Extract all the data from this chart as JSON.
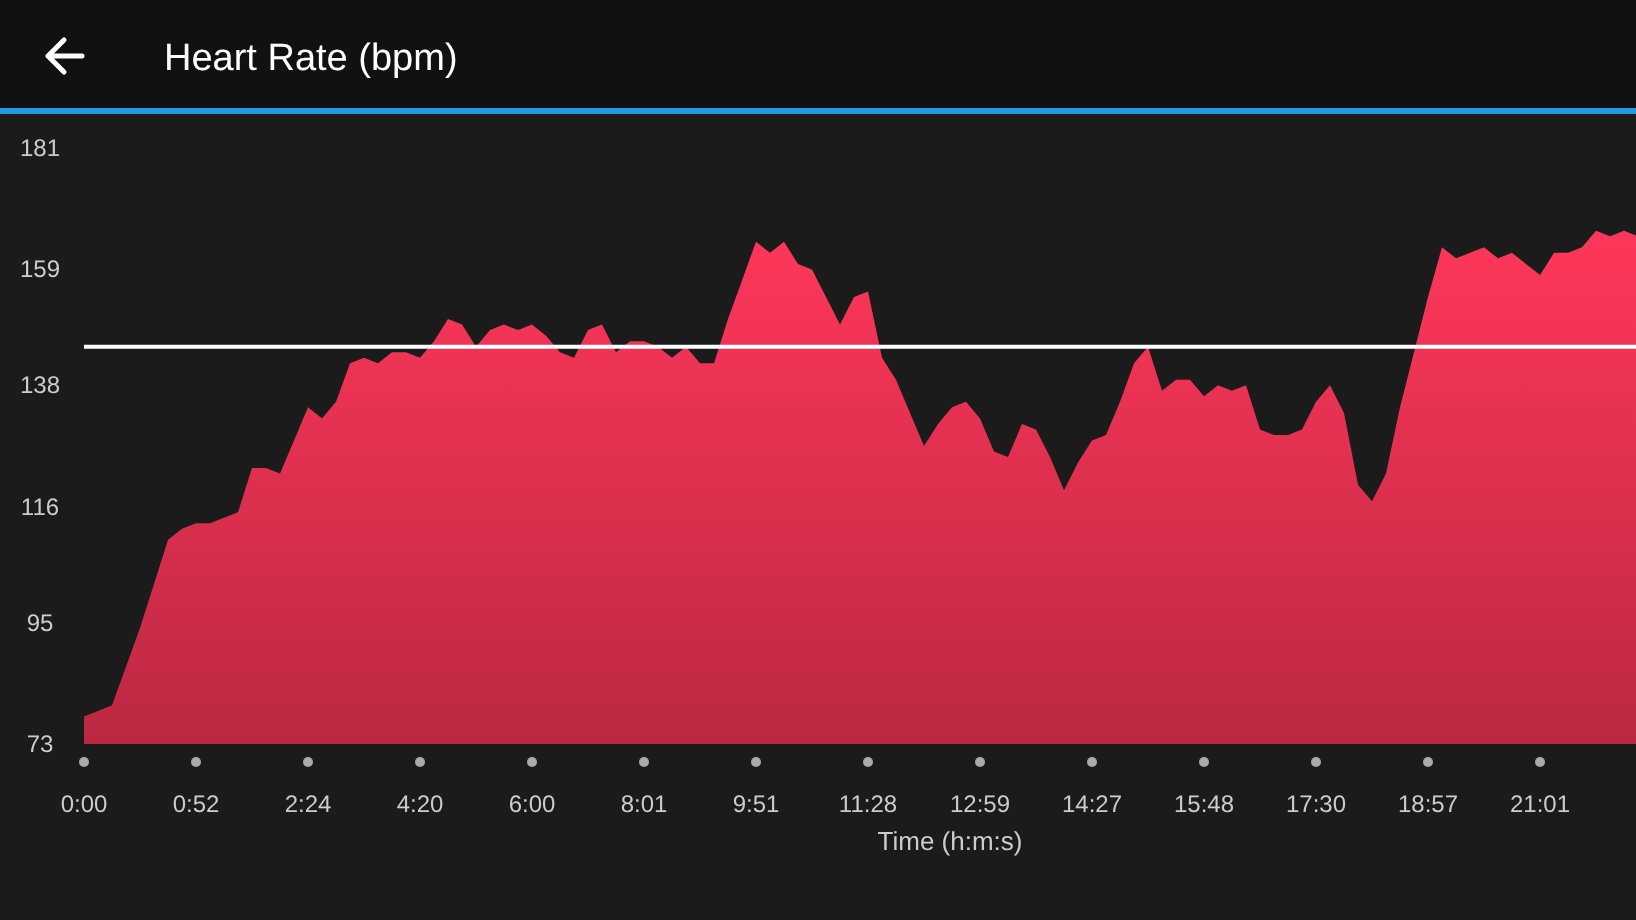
{
  "chart_data": {
    "type": "area",
    "title": "Heart Rate (bpm)",
    "xlabel": "Time (h:m:s)",
    "categories": [
      "0:00",
      null,
      null,
      null,
      null,
      null,
      null,
      null,
      "0:52",
      null,
      null,
      null,
      null,
      null,
      null,
      null,
      "2:24",
      null,
      null,
      null,
      null,
      null,
      null,
      null,
      "4:20",
      null,
      null,
      null,
      null,
      null,
      null,
      null,
      "6:00",
      null,
      null,
      null,
      null,
      null,
      null,
      null,
      "8:01",
      null,
      null,
      null,
      null,
      null,
      null,
      null,
      "9:51",
      null,
      null,
      null,
      null,
      null,
      null,
      null,
      "11:28",
      null,
      null,
      null,
      null,
      null,
      null,
      null,
      "12:59",
      null,
      null,
      null,
      null,
      null,
      null,
      null,
      "14:27",
      null,
      null,
      null,
      null,
      null,
      null,
      null,
      "15:48",
      null,
      null,
      null,
      null,
      null,
      null,
      null,
      "17:30",
      null,
      null,
      null,
      null,
      null,
      null,
      null,
      "18:57",
      null,
      null,
      null,
      null,
      null,
      null,
      null,
      "21:01",
      null,
      null,
      null,
      null,
      null,
      null,
      null
    ],
    "series": [
      {
        "color": "#e0304f",
        "values": [
          78,
          79,
          80,
          87,
          94,
          102,
          110,
          112,
          113,
          113,
          114,
          115,
          123,
          123,
          122,
          128,
          134,
          132,
          135,
          142,
          143,
          142,
          144,
          144,
          143,
          146,
          150,
          149,
          145,
          148,
          149,
          148,
          149,
          147,
          144,
          143,
          148,
          149,
          144,
          146,
          146,
          145,
          143,
          145,
          142,
          142,
          150,
          157,
          164,
          162,
          164,
          160,
          159,
          154,
          149,
          154,
          155,
          143,
          139,
          133,
          127,
          131,
          134,
          135,
          132,
          126,
          125,
          131,
          130,
          125,
          119,
          124,
          128,
          129,
          135,
          142,
          145,
          137,
          139,
          139,
          136,
          138,
          137,
          138,
          130,
          129,
          129,
          130,
          135,
          138,
          133,
          120,
          117,
          122,
          134,
          144,
          154,
          163,
          161,
          162,
          163,
          161,
          162,
          160,
          158,
          162,
          162,
          163,
          166,
          165,
          166,
          165
        ]
      }
    ],
    "ylim": [
      73,
      181
    ],
    "yticks": [
      73,
      95,
      116,
      138,
      159,
      181
    ],
    "ref_lines": [
      {
        "axis": "y",
        "value": 145,
        "color": "#ffffff"
      }
    ],
    "grid": false
  }
}
